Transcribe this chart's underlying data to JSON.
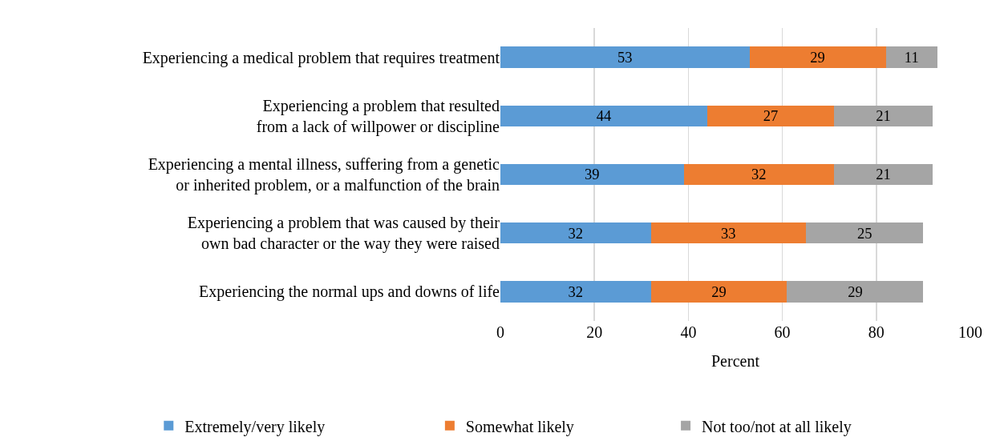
{
  "chart_data": {
    "type": "bar",
    "orientation": "horizontal",
    "stacked": true,
    "xlabel": "Percent",
    "categories": [
      "Experiencing a medical problem that requires treatment",
      "Experiencing a problem that resulted\nfrom a lack of willpower or discipline",
      "Experiencing a mental illness, suffering from a genetic\nor inherited problem, or a malfunction of the brain",
      "Experiencing a problem that was caused by their\nown bad character or the way they were raised",
      "Experiencing the normal ups and downs of life"
    ],
    "series": [
      {
        "name": "Extremely/very likely",
        "color": "#5b9bd5",
        "values": [
          53,
          44,
          39,
          32,
          32
        ]
      },
      {
        "name": "Somewhat likely",
        "color": "#ed7d31",
        "values": [
          29,
          27,
          32,
          33,
          29
        ]
      },
      {
        "name": "Not too/not at all likely",
        "color": "#a5a5a5",
        "values": [
          11,
          21,
          21,
          25,
          29
        ]
      }
    ],
    "xlim": [
      0,
      100
    ],
    "xticks": [
      0,
      20,
      40,
      60,
      80,
      100
    ],
    "grid": "x",
    "data_labels": true,
    "legend": "bottom"
  }
}
